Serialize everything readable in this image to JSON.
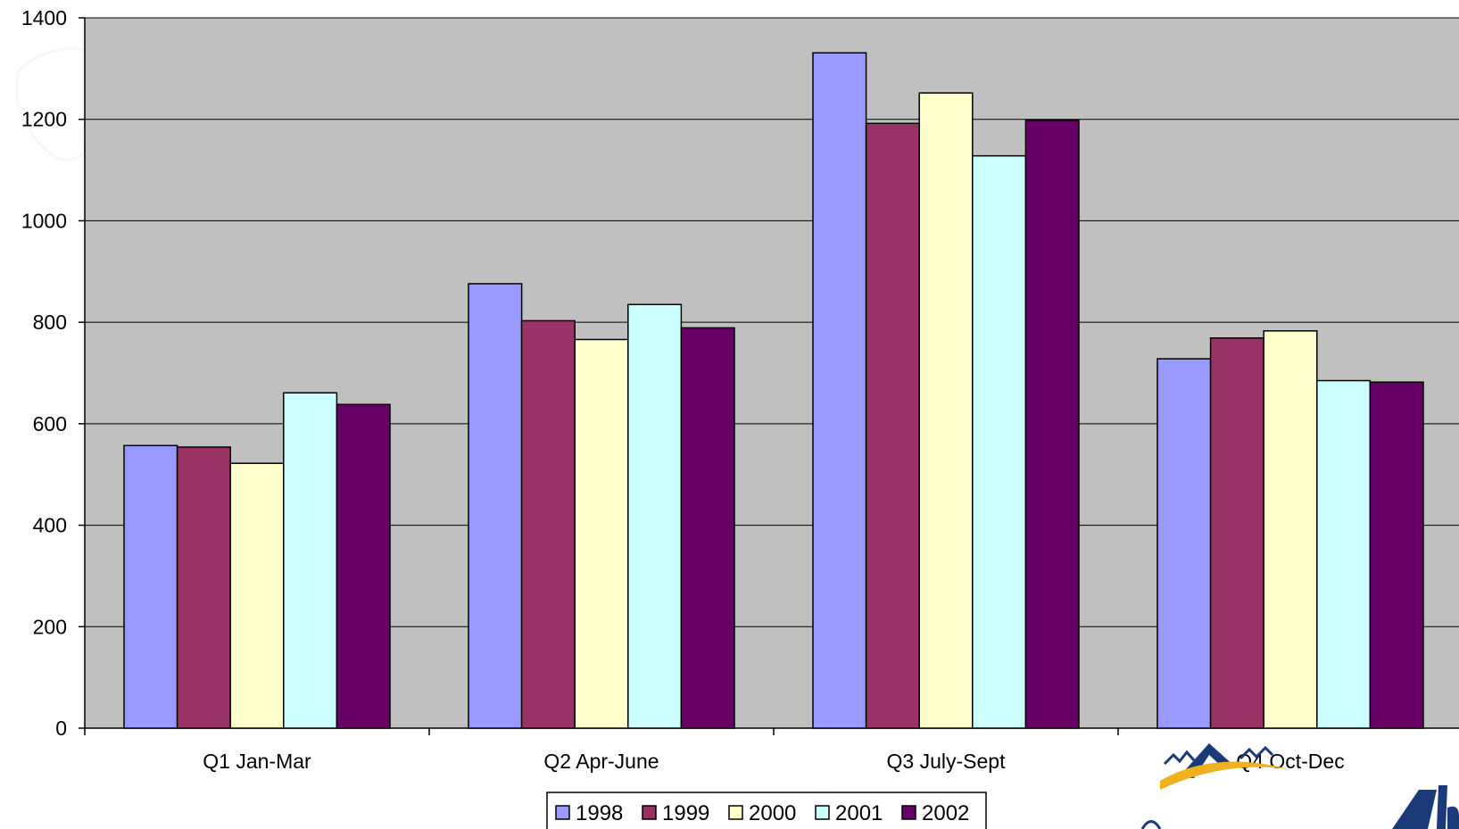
{
  "chart_data": {
    "type": "bar",
    "categories": [
      "Q1 Jan-Mar",
      "Q2 Apr-June",
      "Q3 July-Sept",
      "Q4 Oct-Dec"
    ],
    "series": [
      {
        "name": "1998",
        "color": "#9999FF",
        "values": [
          557,
          876,
          1331,
          728
        ]
      },
      {
        "name": "1999",
        "color": "#993366",
        "values": [
          554,
          803,
          1192,
          769
        ]
      },
      {
        "name": "2000",
        "color": "#FFFFCC",
        "values": [
          522,
          766,
          1252,
          783
        ]
      },
      {
        "name": "2001",
        "color": "#CCFFFF",
        "values": [
          661,
          835,
          1128,
          685
        ]
      },
      {
        "name": "2002",
        "color": "#660066",
        "values": [
          638,
          789,
          1198,
          682
        ]
      }
    ],
    "ylim": [
      0,
      1400
    ],
    "yticks": [
      0,
      200,
      400,
      600,
      800,
      1000,
      1200,
      1400
    ],
    "yticks_labels": [
      "0",
      "200",
      "400",
      "600",
      "800",
      "1000",
      "1200",
      "1400"
    ],
    "grid": true,
    "plot_background": "#C0C0C0",
    "legend": "bottom-center",
    "title": "",
    "xlabel": "",
    "ylabel": ""
  }
}
